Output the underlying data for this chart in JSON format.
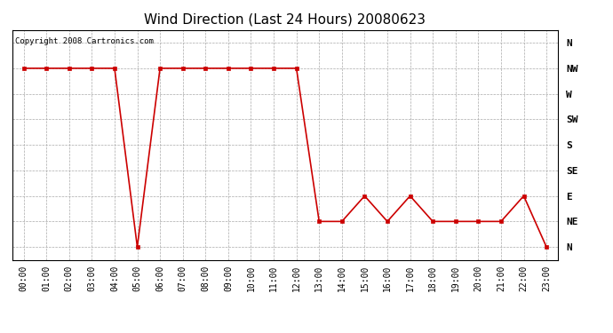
{
  "title": "Wind Direction (Last 24 Hours) 20080623",
  "copyright_text": "Copyright 2008 Cartronics.com",
  "background_color": "#ffffff",
  "plot_bg_color": "#ffffff",
  "line_color": "#cc0000",
  "marker_color": "#cc0000",
  "grid_color": "#aaaaaa",
  "x_labels": [
    "00:00",
    "01:00",
    "02:00",
    "03:00",
    "04:00",
    "05:00",
    "06:00",
    "07:00",
    "08:00",
    "09:00",
    "10:00",
    "11:00",
    "12:00",
    "13:00",
    "14:00",
    "15:00",
    "16:00",
    "17:00",
    "18:00",
    "19:00",
    "20:00",
    "21:00",
    "22:00",
    "23:00"
  ],
  "data_hours": [
    0,
    1,
    2,
    3,
    4,
    5,
    6,
    7,
    8,
    9,
    10,
    11,
    12,
    13,
    14,
    15,
    16,
    17,
    18,
    19,
    20,
    21,
    22,
    23
  ],
  "data_values": [
    7,
    7,
    7,
    7,
    7,
    0,
    7,
    7,
    7,
    7,
    7,
    7,
    7,
    1,
    1,
    2,
    1,
    2,
    1,
    1,
    1,
    1,
    2,
    0
  ],
  "right_ytick_positions": [
    8,
    7,
    6,
    5,
    4,
    3,
    2,
    1,
    0
  ],
  "right_ytick_labels": [
    "N",
    "NW",
    "W",
    "SW",
    "S",
    "SE",
    "E",
    "NE",
    "N"
  ],
  "ylim": [
    -0.5,
    8.5
  ],
  "xlim": [
    -0.5,
    23.5
  ],
  "title_fontsize": 11,
  "tick_fontsize": 7,
  "copyright_fontsize": 6.5
}
